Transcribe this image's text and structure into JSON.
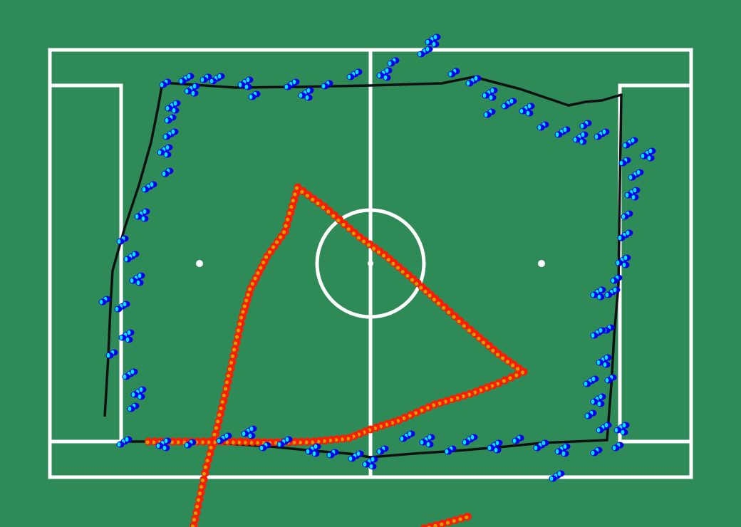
{
  "colors": {
    "grass": "#2e8b57",
    "lines": "#ffffff",
    "boundary_path": "#111111",
    "ball_point_outer": "#0000ee",
    "ball_point_inner": "#00e5ff",
    "trajectory_outer": "#ff1a00",
    "trajectory_inner": "#c8a400"
  },
  "icons": {
    "field": "soccer-pitch-icon",
    "boundary": "polyline-icon",
    "detections": "dot-cluster-icon",
    "trajectory": "dashed-path-icon"
  }
}
